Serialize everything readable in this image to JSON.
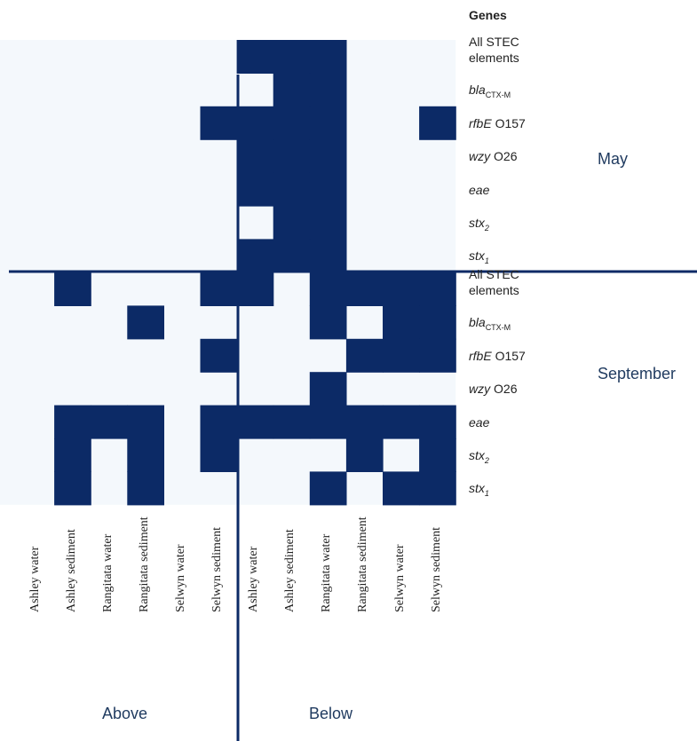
{
  "chart_data": {
    "type": "heatmap",
    "genes_title": "Genes",
    "colors": {
      "present": "#0c2a66",
      "absent": "#f4f8fc",
      "divider": "#0c2a66",
      "label": "#1f3a5f"
    },
    "columns": [
      "Ashley water",
      "Ashley sediment",
      "Rangitata water",
      "Rangitata sediment",
      "Selwyn water",
      "Selwyn sediment",
      "Ashley water",
      "Ashley sediment",
      "Rangitata water",
      "Rangitata sediment",
      "Selwyn water",
      "Selwyn sediment"
    ],
    "column_groups": [
      {
        "label": "Above",
        "columns": [
          0,
          1,
          2,
          3,
          4,
          5
        ]
      },
      {
        "label": "Below",
        "columns": [
          6,
          7,
          8,
          9,
          10,
          11
        ]
      }
    ],
    "panels": [
      {
        "period": "May",
        "rows": [
          {
            "gene_main": "All STEC",
            "gene_tail": "elements",
            "italic": false,
            "values": [
              0,
              0,
              0,
              0,
              0,
              0,
              1,
              1,
              1,
              0,
              0,
              0
            ]
          },
          {
            "gene_main": "bla",
            "gene_sub": "CTX-M",
            "italic": true,
            "values": [
              0,
              0,
              0,
              0,
              0,
              0,
              0,
              1,
              1,
              0,
              0,
              0
            ]
          },
          {
            "gene_main": "rfbE",
            "gene_tail": " O157",
            "italic": true,
            "values": [
              0,
              0,
              0,
              0,
              0,
              1,
              1,
              1,
              1,
              0,
              0,
              1
            ]
          },
          {
            "gene_main": "wzy",
            "gene_tail": " O26",
            "italic": true,
            "values": [
              0,
              0,
              0,
              0,
              0,
              0,
              1,
              1,
              1,
              0,
              0,
              0
            ]
          },
          {
            "gene_main": "eae",
            "italic": true,
            "values": [
              0,
              0,
              0,
              0,
              0,
              0,
              1,
              1,
              1,
              0,
              0,
              0
            ]
          },
          {
            "gene_main": "stx",
            "gene_sub": "2",
            "italic": true,
            "values": [
              0,
              0,
              0,
              0,
              0,
              0,
              0,
              1,
              1,
              0,
              0,
              0
            ]
          },
          {
            "gene_main": "stx",
            "gene_sub": "1",
            "italic": true,
            "values": [
              0,
              0,
              0,
              0,
              0,
              0,
              1,
              1,
              1,
              0,
              0,
              0
            ]
          }
        ]
      },
      {
        "period": "September",
        "rows": [
          {
            "gene_main": "All STEC",
            "gene_tail": "elements",
            "italic": false,
            "values": [
              0,
              1,
              0,
              0,
              0,
              1,
              1,
              0,
              1,
              1,
              1,
              1
            ]
          },
          {
            "gene_main": "bla",
            "gene_sub": "CTX-M",
            "italic": true,
            "values": [
              0,
              0,
              0,
              1,
              0,
              0,
              0,
              0,
              1,
              0,
              1,
              1
            ]
          },
          {
            "gene_main": "rfbE",
            "gene_tail": " O157",
            "italic": true,
            "values": [
              0,
              0,
              0,
              0,
              0,
              1,
              0,
              0,
              0,
              1,
              1,
              1
            ]
          },
          {
            "gene_main": "wzy",
            "gene_tail": " O26",
            "italic": true,
            "values": [
              0,
              0,
              0,
              0,
              0,
              0,
              0,
              0,
              1,
              0,
              0,
              0
            ]
          },
          {
            "gene_main": "eae",
            "italic": true,
            "values": [
              0,
              1,
              1,
              1,
              0,
              1,
              1,
              1,
              1,
              1,
              1,
              1
            ]
          },
          {
            "gene_main": "stx",
            "gene_sub": "2",
            "italic": true,
            "values": [
              0,
              1,
              0,
              1,
              0,
              1,
              0,
              0,
              0,
              1,
              0,
              1
            ]
          },
          {
            "gene_main": "stx",
            "gene_sub": "1",
            "italic": true,
            "values": [
              0,
              1,
              0,
              1,
              0,
              0,
              0,
              0,
              1,
              0,
              1,
              1
            ]
          }
        ]
      }
    ]
  }
}
